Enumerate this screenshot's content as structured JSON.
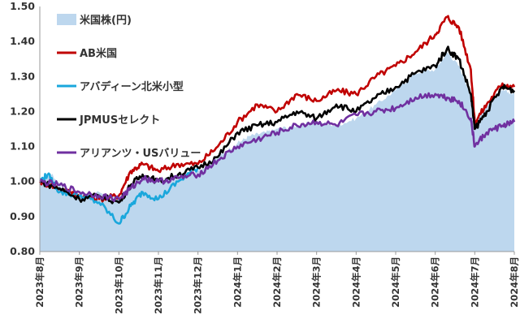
{
  "chart_data": {
    "type": "line",
    "title": "",
    "xlabel": "",
    "ylabel": "",
    "ylim": [
      0.8,
      1.5
    ],
    "y_ticks": [
      "0.80",
      "0.90",
      "1.00",
      "1.10",
      "1.20",
      "1.30",
      "1.40",
      "1.50"
    ],
    "x_ticks": [
      "2023年8月",
      "2023年9月",
      "2023年10月",
      "2023年11月",
      "2023年12月",
      "2024年1月",
      "2024年2月",
      "2024年3月",
      "2024年4月",
      "2024年5月",
      "2024年6月",
      "2024年7月",
      "2024年8月"
    ],
    "grid": false,
    "legend_position": "top-left",
    "series": [
      {
        "name": "米国株(円)",
        "kind": "area",
        "color": "#bdd7ee",
        "points": [
          [
            0,
            1.0
          ],
          [
            0.3,
            1.02
          ],
          [
            0.6,
            0.98
          ],
          [
            1.0,
            0.96
          ],
          [
            1.5,
            0.97
          ],
          [
            2.0,
            0.95
          ],
          [
            2.3,
            0.99
          ],
          [
            2.6,
            1.01
          ],
          [
            3.0,
            1.0
          ],
          [
            3.5,
            1.02
          ],
          [
            4.0,
            1.03
          ],
          [
            4.5,
            1.07
          ],
          [
            5.0,
            1.11
          ],
          [
            5.3,
            1.13
          ],
          [
            5.7,
            1.14
          ],
          [
            6.0,
            1.15
          ],
          [
            6.5,
            1.16
          ],
          [
            7.0,
            1.17
          ],
          [
            7.5,
            1.16
          ],
          [
            8.0,
            1.18
          ],
          [
            8.5,
            1.22
          ],
          [
            9.0,
            1.26
          ],
          [
            9.5,
            1.31
          ],
          [
            10.0,
            1.32
          ],
          [
            10.3,
            1.37
          ],
          [
            10.6,
            1.33
          ],
          [
            10.9,
            1.25
          ],
          [
            11.0,
            1.17
          ],
          [
            11.3,
            1.22
          ],
          [
            11.7,
            1.26
          ],
          [
            12.0,
            1.25
          ]
        ]
      },
      {
        "name": "AB米国",
        "kind": "line",
        "color": "#c00000",
        "points": [
          [
            0,
            1.0
          ],
          [
            0.5,
            0.98
          ],
          [
            1.0,
            0.96
          ],
          [
            1.5,
            0.95
          ],
          [
            2.0,
            0.96
          ],
          [
            2.3,
            1.03
          ],
          [
            2.6,
            1.05
          ],
          [
            3.0,
            1.03
          ],
          [
            3.5,
            1.05
          ],
          [
            4.0,
            1.05
          ],
          [
            4.5,
            1.1
          ],
          [
            5.0,
            1.17
          ],
          [
            5.5,
            1.22
          ],
          [
            6.0,
            1.2
          ],
          [
            6.5,
            1.25
          ],
          [
            7.0,
            1.23
          ],
          [
            7.5,
            1.26
          ],
          [
            8.0,
            1.25
          ],
          [
            8.5,
            1.3
          ],
          [
            9.0,
            1.33
          ],
          [
            9.5,
            1.37
          ],
          [
            10.0,
            1.42
          ],
          [
            10.3,
            1.47
          ],
          [
            10.6,
            1.44
          ],
          [
            10.9,
            1.32
          ],
          [
            11.0,
            1.17
          ],
          [
            11.3,
            1.22
          ],
          [
            11.7,
            1.28
          ],
          [
            12.0,
            1.27
          ]
        ]
      },
      {
        "name": "アバディーン北米小型",
        "kind": "line",
        "color": "#1aa7dc",
        "points": [
          [
            0,
            1.0
          ],
          [
            0.2,
            1.02
          ],
          [
            0.5,
            0.97
          ],
          [
            1.0,
            0.96
          ],
          [
            1.5,
            0.94
          ],
          [
            2.0,
            0.88
          ],
          [
            2.3,
            0.93
          ],
          [
            2.6,
            0.97
          ],
          [
            3.0,
            0.95
          ],
          [
            3.5,
            1.0
          ],
          [
            4.0,
            1.04
          ]
        ]
      },
      {
        "name": "JPMUSセレクト",
        "kind": "line",
        "color": "#000000",
        "points": [
          [
            0,
            1.0
          ],
          [
            0.5,
            0.98
          ],
          [
            1.0,
            0.95
          ],
          [
            1.5,
            0.96
          ],
          [
            2.0,
            0.94
          ],
          [
            2.3,
            0.99
          ],
          [
            2.6,
            1.02
          ],
          [
            3.0,
            1.0
          ],
          [
            3.5,
            1.02
          ],
          [
            4.0,
            1.04
          ],
          [
            4.5,
            1.07
          ],
          [
            5.0,
            1.14
          ],
          [
            5.5,
            1.16
          ],
          [
            6.0,
            1.17
          ],
          [
            6.5,
            1.2
          ],
          [
            7.0,
            1.18
          ],
          [
            7.5,
            1.22
          ],
          [
            8.0,
            1.2
          ],
          [
            8.5,
            1.24
          ],
          [
            9.0,
            1.27
          ],
          [
            9.5,
            1.31
          ],
          [
            10.0,
            1.33
          ],
          [
            10.3,
            1.38
          ],
          [
            10.6,
            1.35
          ],
          [
            10.9,
            1.25
          ],
          [
            11.0,
            1.15
          ],
          [
            11.3,
            1.2
          ],
          [
            11.7,
            1.27
          ],
          [
            12.0,
            1.26
          ]
        ]
      },
      {
        "name": "アリアンツ・USバリュー",
        "kind": "line",
        "color": "#7030a0",
        "points": [
          [
            0,
            1.0
          ],
          [
            0.5,
            0.99
          ],
          [
            1.0,
            0.97
          ],
          [
            1.5,
            0.96
          ],
          [
            2.0,
            0.95
          ],
          [
            2.3,
            0.98
          ],
          [
            2.6,
            1.01
          ],
          [
            3.0,
            1.0
          ],
          [
            3.5,
            1.01
          ],
          [
            4.0,
            1.02
          ],
          [
            4.5,
            1.06
          ],
          [
            5.0,
            1.1
          ],
          [
            5.5,
            1.12
          ],
          [
            6.0,
            1.14
          ],
          [
            6.5,
            1.16
          ],
          [
            7.0,
            1.17
          ],
          [
            7.5,
            1.16
          ],
          [
            8.0,
            1.19
          ],
          [
            8.5,
            1.2
          ],
          [
            9.0,
            1.21
          ],
          [
            9.5,
            1.24
          ],
          [
            10.0,
            1.25
          ],
          [
            10.3,
            1.24
          ],
          [
            10.6,
            1.23
          ],
          [
            10.9,
            1.18
          ],
          [
            11.0,
            1.1
          ],
          [
            11.3,
            1.14
          ],
          [
            11.7,
            1.16
          ],
          [
            12.0,
            1.17
          ]
        ]
      }
    ]
  }
}
